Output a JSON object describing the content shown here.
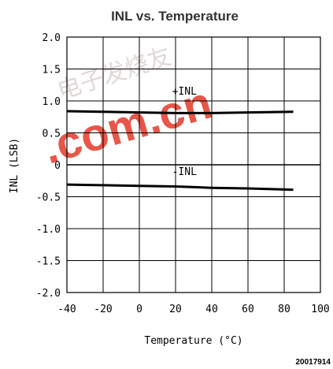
{
  "chart_data": {
    "type": "line",
    "title": "INL vs. Temperature",
    "xlabel": "Temperature (°C)",
    "ylabel": "INL (LSB)",
    "xlim": [
      -40,
      100
    ],
    "ylim": [
      -2.0,
      2.0
    ],
    "x_ticks": [
      -40,
      -20,
      0,
      20,
      40,
      60,
      80,
      100
    ],
    "x_tick_labels": [
      "-40",
      "-20",
      "0",
      "20",
      "40",
      "60",
      "80",
      "100"
    ],
    "y_ticks": [
      2.0,
      1.5,
      1.0,
      0.5,
      0,
      -0.5,
      -1.0,
      -1.5,
      -2.0
    ],
    "y_tick_labels": [
      "2.0",
      "1.5",
      "1.0",
      "0.5",
      "0",
      "-0.5",
      "-1.0",
      "-1.5",
      "-2.0"
    ],
    "grid": true,
    "series": [
      {
        "name": "+INL",
        "x": [
          -40,
          -20,
          0,
          20,
          40,
          60,
          85
        ],
        "y": [
          0.84,
          0.83,
          0.82,
          0.81,
          0.81,
          0.82,
          0.83
        ]
      },
      {
        "name": "-INL",
        "x": [
          -40,
          -20,
          0,
          20,
          40,
          60,
          85
        ],
        "y": [
          -0.31,
          -0.32,
          -0.33,
          -0.34,
          -0.36,
          -0.37,
          -0.39
        ]
      }
    ],
    "annotations": [
      {
        "text": "+INL",
        "x": 12,
        "y": 1.1
      },
      {
        "text": "-INL",
        "x": 12,
        "y": -0.16
      }
    ]
  },
  "figure_id": "20017914",
  "watermark": {
    "text": ".com.cn",
    "cjk": "电子发烧友",
    "color": "#e23a2a"
  },
  "colors": {
    "line": "#000000",
    "grid": "#000000",
    "background": "#ffffff"
  }
}
